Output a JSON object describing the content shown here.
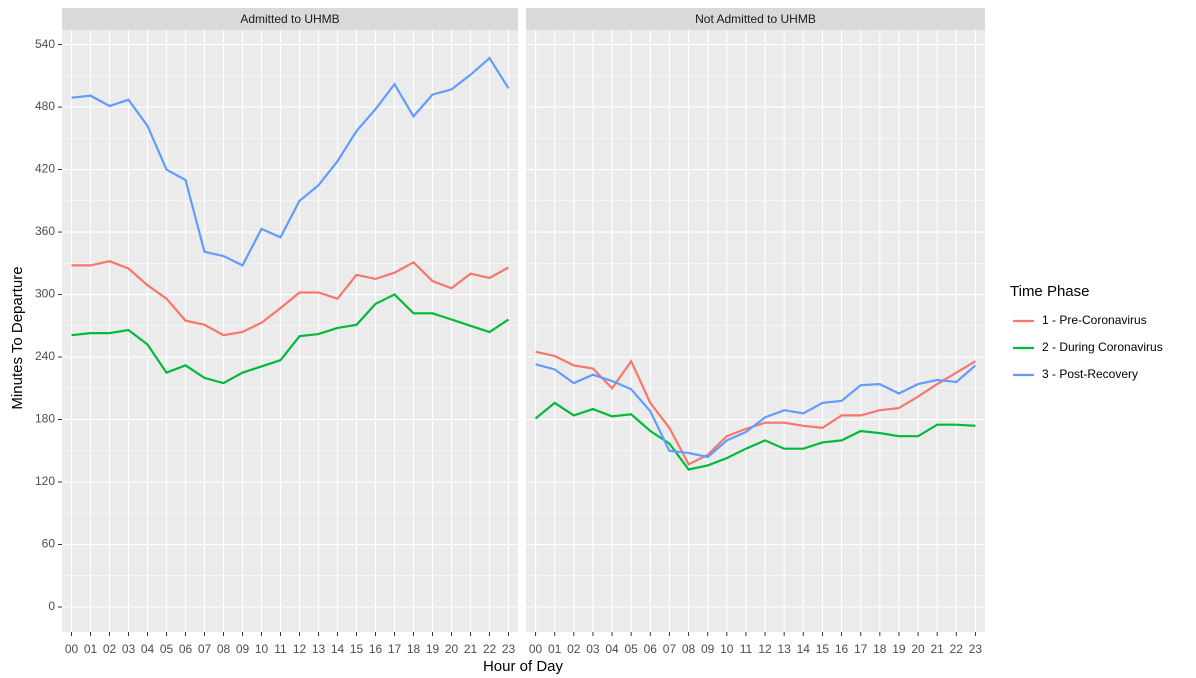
{
  "chart_data": [
    {
      "type": "line",
      "title": "Admitted to UHMB",
      "categories": [
        "00",
        "01",
        "02",
        "03",
        "04",
        "05",
        "06",
        "07",
        "08",
        "09",
        "10",
        "11",
        "12",
        "13",
        "14",
        "15",
        "16",
        "17",
        "18",
        "19",
        "20",
        "21",
        "22",
        "23"
      ],
      "series": [
        {
          "name": "1 - Pre-Coronavirus",
          "color": "#F8766D",
          "values": [
            328,
            328,
            332,
            325,
            309,
            296,
            275,
            271,
            261,
            264,
            273,
            287,
            302,
            302,
            296,
            319,
            315,
            321,
            331,
            313,
            306,
            320,
            316,
            326
          ]
        },
        {
          "name": "2 - During Coronavirus",
          "color": "#00BA38",
          "values": [
            261,
            263,
            263,
            266,
            252,
            225,
            232,
            220,
            215,
            225,
            231,
            237,
            260,
            262,
            268,
            271,
            291,
            300,
            282,
            282,
            276,
            270,
            264,
            276
          ]
        },
        {
          "name": "3 - Post-Recovery",
          "color": "#619CFF",
          "values": [
            489,
            491,
            481,
            487,
            462,
            420,
            410,
            341,
            337,
            328,
            363,
            355,
            390,
            405,
            428,
            457,
            478,
            502,
            471,
            492,
            497,
            511,
            527,
            498
          ]
        }
      ],
      "ylim": [
        -24,
        554
      ],
      "yticks": [
        0,
        60,
        120,
        180,
        240,
        300,
        360,
        420,
        480,
        540
      ],
      "grid": true
    },
    {
      "type": "line",
      "title": "Not Admitted to UHMB",
      "categories": [
        "00",
        "01",
        "02",
        "03",
        "04",
        "05",
        "06",
        "07",
        "08",
        "09",
        "10",
        "11",
        "12",
        "13",
        "14",
        "15",
        "16",
        "17",
        "18",
        "19",
        "20",
        "21",
        "22",
        "23"
      ],
      "series": [
        {
          "color": "#F8766D",
          "values": [
            245,
            241,
            232,
            229,
            210,
            236,
            196,
            172,
            137,
            146,
            164,
            171,
            177,
            177,
            174,
            172,
            184,
            184,
            189,
            191,
            202,
            214,
            225,
            236
          ]
        },
        {
          "color": "#00BA38",
          "values": [
            181,
            196,
            184,
            190,
            183,
            185,
            169,
            157,
            132,
            136,
            143,
            152,
            160,
            152,
            152,
            158,
            160,
            169,
            167,
            164,
            164,
            175,
            175,
            174
          ]
        },
        {
          "color": "#619CFF",
          "values": [
            233,
            228,
            215,
            223,
            217,
            209,
            188,
            150,
            148,
            144,
            160,
            168,
            182,
            189,
            186,
            196,
            198,
            213,
            214,
            205,
            214,
            218,
            216,
            232
          ]
        }
      ],
      "ylim": [
        -24,
        554
      ],
      "yticks": [
        0,
        60,
        120,
        180,
        240,
        300,
        360,
        420,
        480,
        540
      ],
      "grid": true
    }
  ],
  "x_label": "Hour of Day",
  "y_label": "Minutes To Departure",
  "legend_title": "Time Phase"
}
